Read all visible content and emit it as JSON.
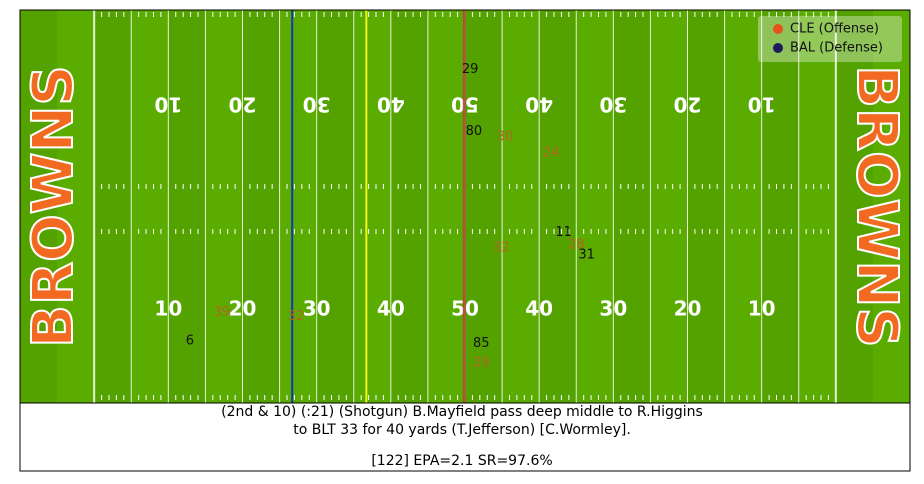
{
  "chart_data": {
    "type": "scatter",
    "caption": [
      "(2nd & 10) (:21) (Shotgun) B.Mayfield pass deep middle to R.Higgins",
      "to BLT 33 for 40 yards (T.Jefferson) [C.Wormley].",
      "[122] EPA=2.1 SR=97.6%"
    ],
    "xlim": [
      0,
      120
    ],
    "ylim": [
      0,
      53.3
    ],
    "legend": "upper right",
    "field": {
      "end_zone_text": "BROWNS",
      "yard_numbers": [
        "10",
        "20",
        "30",
        "40",
        "50",
        "40",
        "30",
        "20",
        "10"
      ],
      "line_of_scrimmage": 36.7,
      "first_down_line": 46.7,
      "target_line": 59.9
    },
    "series": [
      {
        "name": "CLE (Offense)",
        "color": "#e8521c",
        "label_color": "#111111",
        "labels": [
          "29",
          "80",
          "11",
          "31",
          "6",
          "85"
        ],
        "x": [
          60.7,
          61.2,
          73.3,
          76.4,
          22.9,
          62.2
        ],
        "y": [
          45.2,
          36.8,
          23.1,
          20.1,
          8.4,
          8.1
        ]
      },
      {
        "name": "BAL (Defense)",
        "color": "#1b1b5e",
        "label_color": "#b5651d",
        "labels": [
          "30",
          "24",
          "32",
          "28",
          "39",
          "32",
          "29"
        ],
        "x": [
          65.4,
          71.6,
          64.9,
          75.0,
          27.2,
          37.2,
          62.2
        ],
        "y": [
          36.1,
          33.9,
          21.0,
          21.4,
          12.3,
          11.7,
          5.4
        ]
      }
    ]
  }
}
